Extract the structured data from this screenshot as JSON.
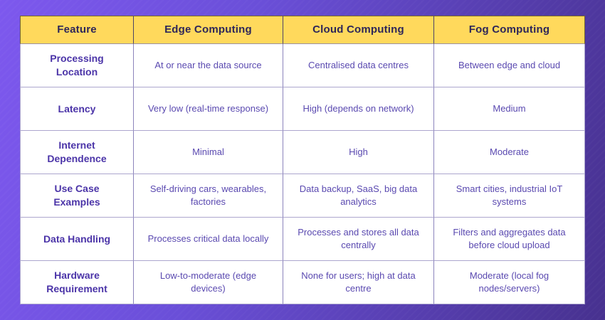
{
  "title": "Edge vs Cloud vs Fog Computing comparison table",
  "colors": {
    "background_gradient_start": "#7D58EE",
    "background_gradient_end": "#47318F",
    "header_bg": "#FFD95C",
    "header_text": "#2E2659",
    "feature_text": "#4B34A8",
    "body_text": "#5A49B0",
    "cell_bg": "#FFFFFF",
    "grid_line_vertical": "#8C84BC",
    "grid_line_horizontal": "#ACA6CE"
  },
  "chart_data": {
    "type": "table",
    "columns": [
      "Feature",
      "Edge Computing",
      "Cloud Computing",
      "Fog Computing"
    ],
    "rows": [
      [
        "Processing Location",
        "At or near the data source",
        "Centralised data centres",
        "Between edge and cloud"
      ],
      [
        "Latency",
        "Very low (real-time response)",
        "High (depends on network)",
        "Medium"
      ],
      [
        "Internet Dependence",
        "Minimal",
        "High",
        "Moderate"
      ],
      [
        "Use Case Examples",
        "Self-driving cars, wearables, factories",
        "Data backup, SaaS, big data analytics",
        "Smart cities, industrial IoT systems"
      ],
      [
        "Data Handling",
        "Processes critical data locally",
        "Processes and stores all data centrally",
        "Filters and aggregates data before cloud upload"
      ],
      [
        "Hardware Requirement",
        "Low-to-moderate (edge devices)",
        "None for users; high at data centre",
        "Moderate (local fog nodes/servers)"
      ]
    ]
  }
}
